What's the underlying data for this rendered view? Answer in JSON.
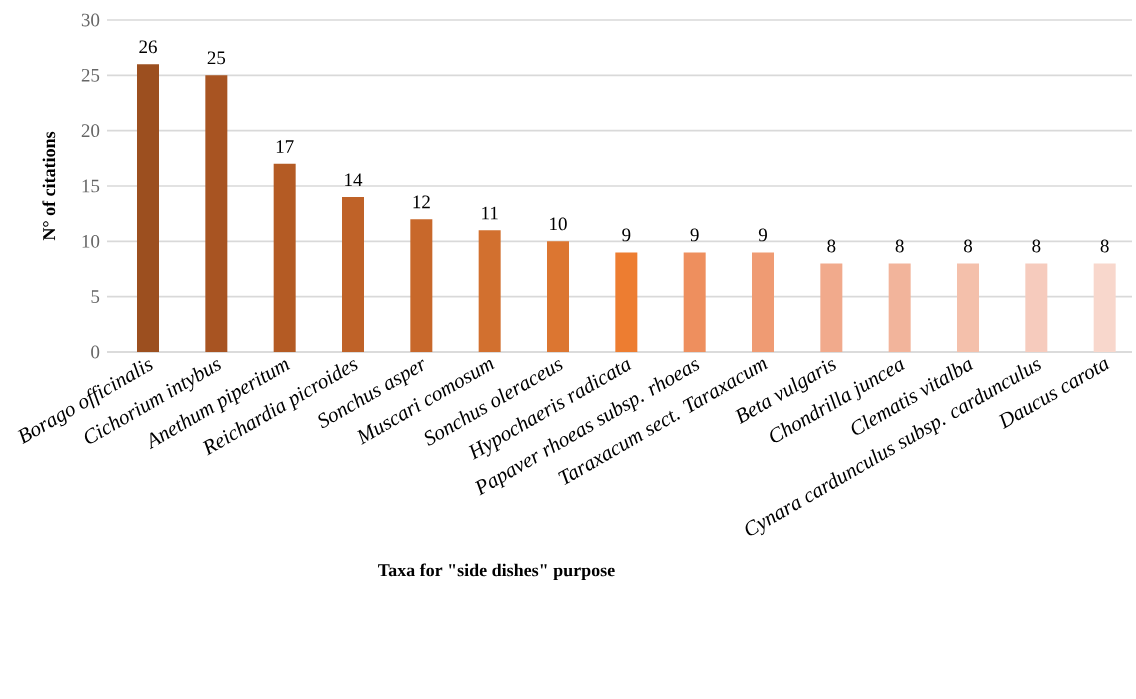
{
  "chart_data": {
    "type": "bar",
    "xlabel": "Taxa for \"side dishes\" purpose",
    "ylabel": "N° of citations",
    "categories": [
      "Borago officinalis",
      "Cichorium intybus",
      "Anethum piperitum",
      "Reichardia picroides",
      "Sonchus asper",
      "Muscari comosum",
      "Sonchus oleraceus",
      "Hypochaeris radicata",
      "Papaver rhoeas subsp. rhoeas",
      "Taraxacum sect. Taraxacum",
      "Beta vulgaris",
      "Chondrilla juncea",
      "Clematis vitalba",
      "Cynara cardunculus subsp. cardunculus",
      "Daucus carota"
    ],
    "values": [
      26,
      25,
      17,
      14,
      12,
      11,
      10,
      9,
      9,
      9,
      8,
      8,
      8,
      8,
      8
    ],
    "colors": [
      "#9c4f1f",
      "#a85422",
      "#b45b24",
      "#bf6228",
      "#c8682b",
      "#d2702f",
      "#dc7631",
      "#ed7d31",
      "#ee8f5e",
      "#ef9b73",
      "#f1aa8c",
      "#f2b49b",
      "#f4c0ab",
      "#f6cbbd",
      "#f8d7cc"
    ],
    "ylim": [
      0,
      30
    ],
    "yticks": [
      0,
      5,
      10,
      15,
      20,
      25,
      30
    ],
    "grid": "y",
    "data_labels": true
  }
}
